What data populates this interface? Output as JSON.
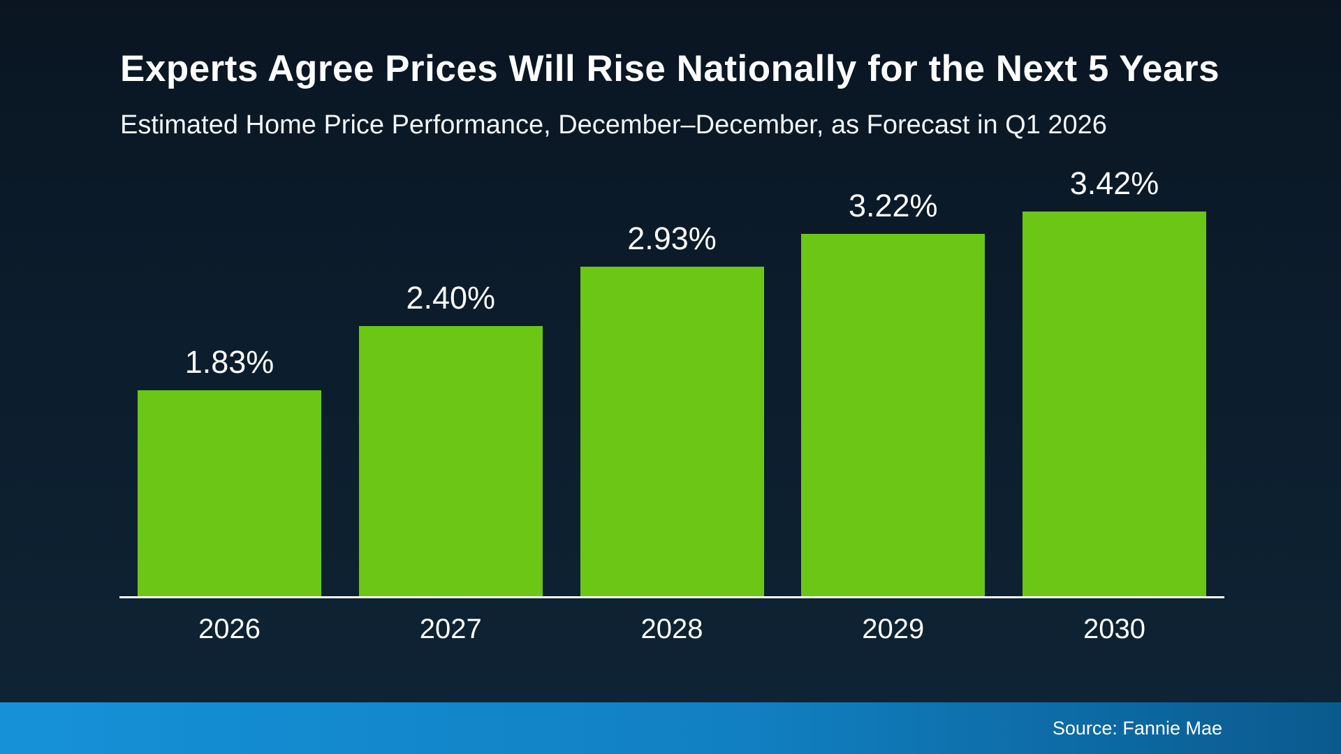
{
  "title": "Experts Agree Prices Will Rise Nationally for the Next 5 Years",
  "subtitle": "Estimated Home Price Performance, December–December, as Forecast in Q1 2026",
  "source": "Source: Fannie Mae",
  "colors": {
    "bar": "#6cc616",
    "axis": "#ffffff",
    "text": "#ffffff",
    "background_top": "#0a1521",
    "background_bottom": "#0e2435",
    "footer_left": "#1691d8",
    "footer_right": "#0a5a8e"
  },
  "chart_data": {
    "type": "bar",
    "categories": [
      "2026",
      "2027",
      "2028",
      "2029",
      "2030"
    ],
    "values": [
      1.83,
      2.4,
      2.93,
      3.22,
      3.42
    ],
    "value_labels": [
      "1.83%",
      "2.40%",
      "2.93%",
      "3.22%",
      "3.42%"
    ],
    "title": "Experts Agree Prices Will Rise Nationally for the Next 5 Years",
    "subtitle": "Estimated Home Price Performance, December–December, as Forecast in Q1 2026",
    "xlabel": "",
    "ylabel": "",
    "ylim": [
      0,
      4
    ],
    "grid": false,
    "legend": false,
    "bar_color": "#6cc616",
    "source": "Source: Fannie Mae"
  }
}
